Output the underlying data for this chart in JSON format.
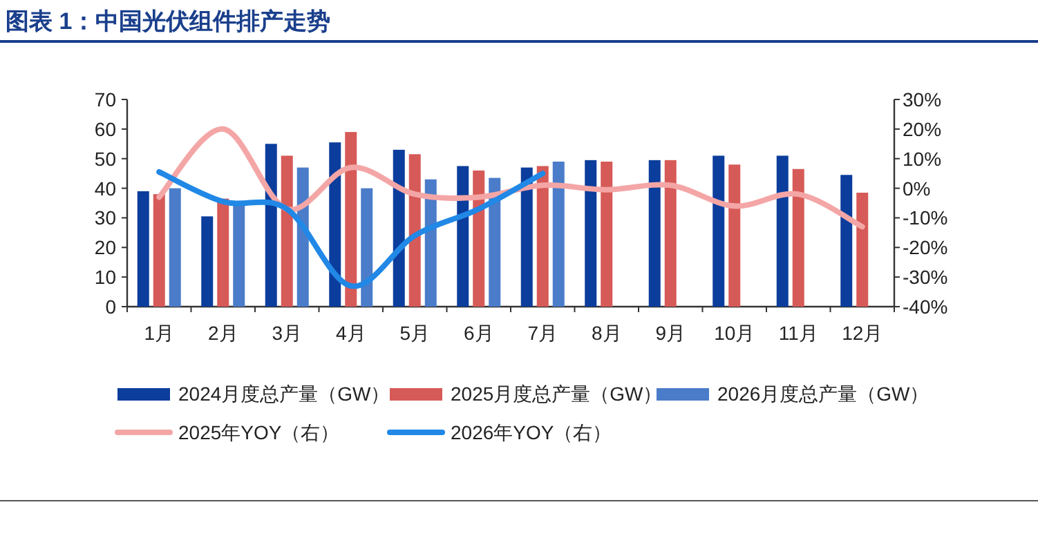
{
  "chart_data": {
    "type": "bar",
    "title": "图表 1：中国光伏组件排产走势",
    "categories": [
      "1月",
      "2月",
      "3月",
      "4月",
      "5月",
      "6月",
      "7月",
      "8月",
      "9月",
      "10月",
      "11月",
      "12月"
    ],
    "series": [
      {
        "name": "2024月度总产量（GW）",
        "color": "#0b3d9c",
        "values": [
          39,
          30.5,
          55,
          55.5,
          53,
          47.5,
          47,
          49.5,
          49.5,
          51,
          51,
          44.5
        ]
      },
      {
        "name": "2025月度总产量（GW）",
        "color": "#d65a57",
        "values": [
          38,
          36.5,
          51,
          59,
          51.5,
          46,
          47.5,
          49,
          49.5,
          48,
          46.5,
          38.5
        ]
      },
      {
        "name": "2026月度总产量（GW）",
        "color": "#4a7cc9",
        "values": [
          40,
          35,
          47,
          40,
          43,
          43.5,
          49,
          null,
          null,
          null,
          null,
          null
        ]
      },
      {
        "name": "2025年YOY（右）",
        "type": "line",
        "axis": "y2",
        "color": "#f4a6a6",
        "values": [
          -3,
          20,
          -7,
          7,
          -2,
          -3,
          1,
          -0.5,
          1,
          -6,
          -2,
          -13
        ]
      },
      {
        "name": "2026年YOY（右）",
        "type": "line",
        "axis": "y2",
        "color": "#2188e6",
        "values": [
          5.5,
          -4.5,
          -7,
          -33,
          -16,
          -7,
          5,
          null,
          null,
          null,
          null,
          null
        ]
      }
    ],
    "ylim": [
      0,
      70
    ],
    "yticks": [
      0,
      10,
      20,
      30,
      40,
      50,
      60,
      70
    ],
    "y2lim": [
      -40,
      30
    ],
    "y2ticks": [
      {
        "value": -40,
        "label": "-40%"
      },
      {
        "value": -30,
        "label": "-30%"
      },
      {
        "value": -20,
        "label": "-20%"
      },
      {
        "value": -10,
        "label": "-10%"
      },
      {
        "value": 0,
        "label": "0%"
      },
      {
        "value": 10,
        "label": "10%"
      },
      {
        "value": 20,
        "label": "20%"
      },
      {
        "value": 30,
        "label": "30%"
      }
    ],
    "legend": "bottom",
    "grid": false
  }
}
